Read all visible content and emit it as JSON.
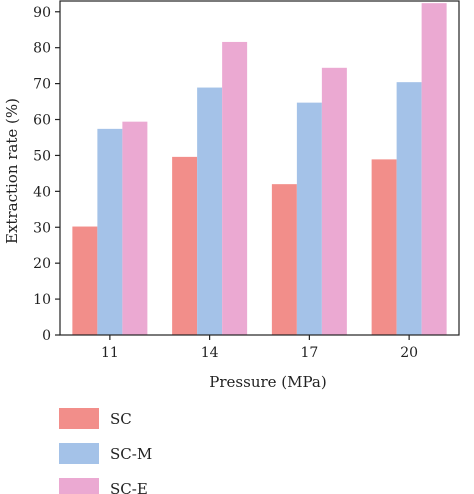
{
  "chart_data": {
    "type": "bar",
    "title": "",
    "xlabel": "Pressure (MPa)",
    "ylabel": "Extraction rate (%)",
    "categories": [
      "11",
      "14",
      "17",
      "20"
    ],
    "ylim": [
      0,
      93
    ],
    "yticks": [
      0,
      10,
      20,
      30,
      40,
      50,
      60,
      70,
      80,
      90
    ],
    "grid": false,
    "legend_position": "bottom-left",
    "series": [
      {
        "name": "SC",
        "color": "#F28E8A",
        "values": [
          30.2,
          49.6,
          42.0,
          48.9
        ]
      },
      {
        "name": "SC-M",
        "color": "#A4C2E8",
        "values": [
          57.4,
          68.9,
          64.7,
          70.4
        ]
      },
      {
        "name": "SC-E",
        "color": "#EBA9D2",
        "values": [
          59.4,
          81.6,
          74.4,
          92.4
        ]
      }
    ]
  }
}
